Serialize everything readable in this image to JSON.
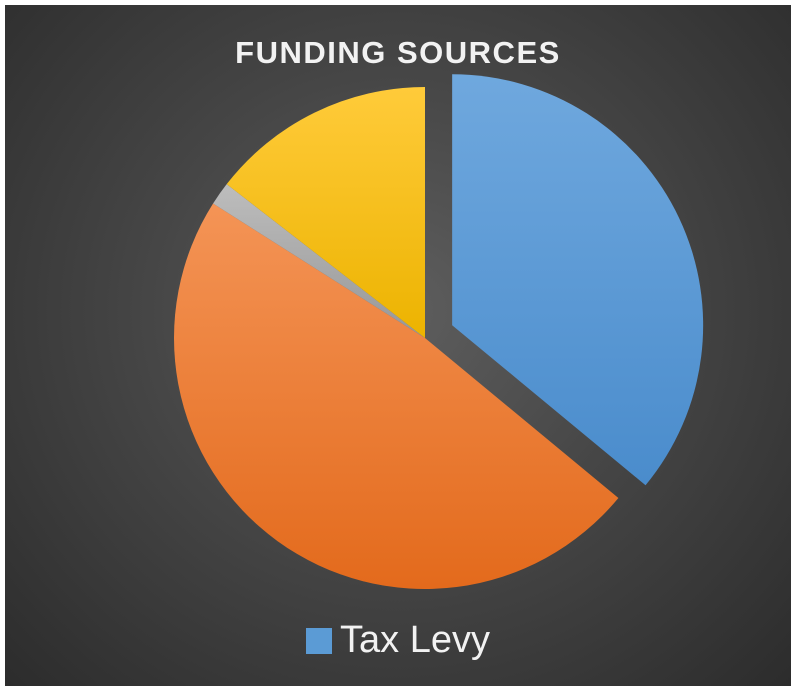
{
  "chart_data": {
    "type": "pie",
    "title": "FUNDING SOURCES",
    "slices": [
      {
        "name": "Tax Levy",
        "value": 36,
        "color": "#5b9bd5",
        "exploded": true
      },
      {
        "name": "",
        "value": 48,
        "color": "#ed7d31",
        "exploded": false
      },
      {
        "name": "",
        "value": 1.5,
        "color": "#a5a5a5",
        "exploded": false
      },
      {
        "name": "",
        "value": 14.5,
        "color": "#ffc000",
        "exploded": false
      }
    ],
    "start_angle_deg": 0,
    "direction": "clockwise",
    "legend": {
      "position": "bottom",
      "entries": [
        "Tax Levy"
      ]
    }
  }
}
